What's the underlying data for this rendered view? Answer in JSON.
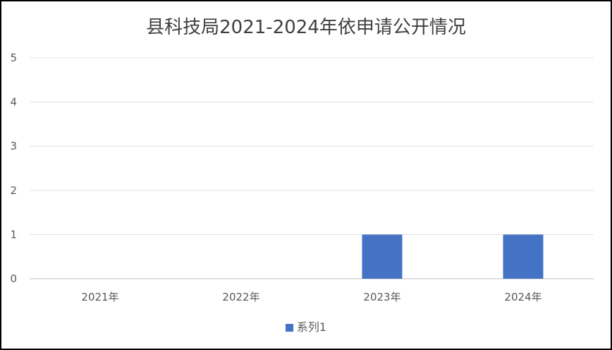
{
  "chart_data": {
    "type": "bar",
    "title": "县科技局2021-2024年依申请公开情况",
    "categories": [
      "2021年",
      "2022年",
      "2023年",
      "2024年"
    ],
    "series": [
      {
        "name": "系列1",
        "values": [
          0,
          0,
          1,
          1
        ],
        "color": "#4472C4"
      }
    ],
    "ylim": [
      0,
      5
    ],
    "yticks": [
      0,
      1,
      2,
      3,
      4,
      5
    ],
    "grid": true,
    "legend": "bottom",
    "xlabel": "",
    "ylabel": ""
  }
}
